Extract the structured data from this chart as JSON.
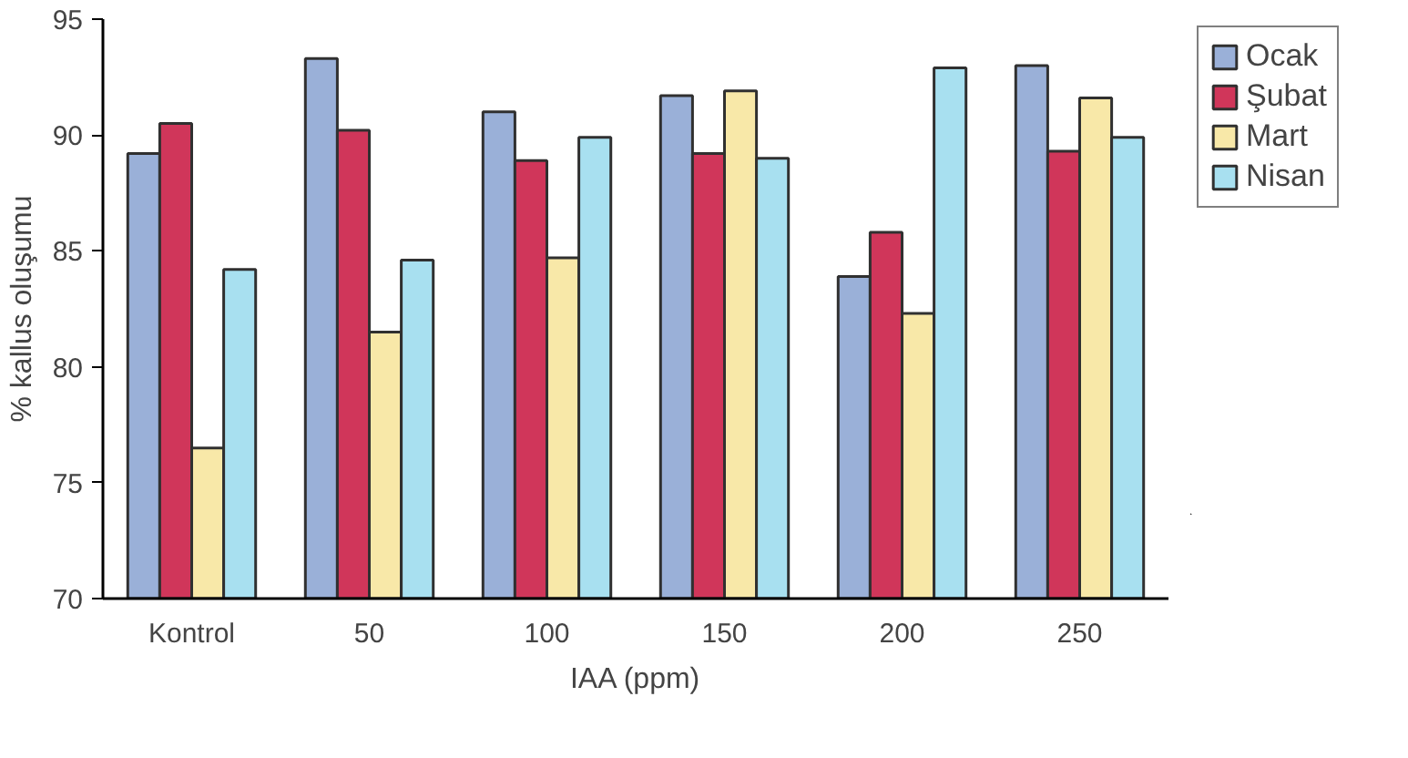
{
  "chart_data": {
    "type": "bar",
    "xlabel": "IAA (ppm)",
    "ylabel": "% kallus oluşumu",
    "categories": [
      "Kontrol",
      "50",
      "100",
      "150",
      "200",
      "250"
    ],
    "series": [
      {
        "name": "Ocak",
        "color": "#9ab0d8",
        "values": [
          89.2,
          93.3,
          91.0,
          91.7,
          83.9,
          93.0
        ]
      },
      {
        "name": "Şubat",
        "color": "#d0365a",
        "values": [
          90.5,
          90.2,
          88.9,
          89.2,
          85.8,
          89.3
        ]
      },
      {
        "name": "Mart",
        "color": "#f8e8a8",
        "values": [
          76.5,
          81.5,
          84.7,
          91.9,
          82.3,
          91.6
        ]
      },
      {
        "name": "Nisan",
        "color": "#a8e0f0",
        "values": [
          84.2,
          84.6,
          89.9,
          89.0,
          92.9,
          89.9
        ]
      }
    ],
    "ylim": [
      70,
      95
    ],
    "yticks": [
      70,
      75,
      80,
      85,
      90,
      95
    ],
    "grid": false,
    "legend": "right"
  }
}
